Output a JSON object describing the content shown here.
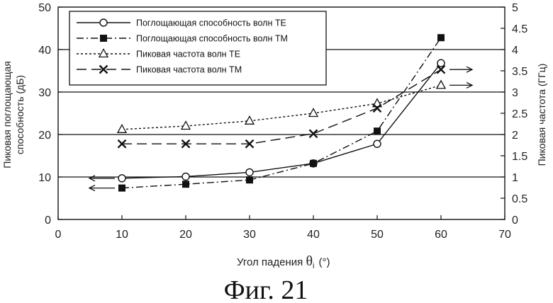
{
  "chart_data": {
    "type": "line",
    "caption": "Фиг. 21",
    "xlabel": "Угол падения θi (°)",
    "xlabel_parts": {
      "text": "Угол падения ",
      "symbol": "θ",
      "subscript": "i",
      "unit": "(°)"
    },
    "ylabel_left": [
      "Пиковая поглощающая",
      "способность (дБ)"
    ],
    "ylabel_right": "Пиковая частота (ГГц)",
    "xlim": [
      0,
      70
    ],
    "ylim_left": [
      0,
      50
    ],
    "ylim_right": [
      0,
      5
    ],
    "x_ticks": [
      "0",
      "10",
      "20",
      "30",
      "40",
      "50",
      "60",
      "70"
    ],
    "y_left_ticks": [
      "0",
      "10",
      "20",
      "30",
      "40",
      "50"
    ],
    "y_right_ticks": [
      "0",
      "0.5",
      "1",
      "1.5",
      "2",
      "2.5",
      "3",
      "3.5",
      "4",
      "4.5",
      "5"
    ],
    "grid": "horizontal",
    "legend_position": "top-left",
    "series": [
      {
        "name": "Поглощающая способность волн ТЕ",
        "axis": "left",
        "marker": "circle-open",
        "line": "solid",
        "x": [
          10,
          20,
          30,
          40,
          50,
          60
        ],
        "y": [
          9.7,
          10.1,
          11.1,
          13.2,
          17.8,
          36.8
        ]
      },
      {
        "name": "Поглощающая способность волн ТМ",
        "axis": "left",
        "marker": "square-filled",
        "line": "dashdot",
        "x": [
          10,
          20,
          30,
          40,
          50,
          60
        ],
        "y": [
          7.4,
          8.3,
          9.3,
          13.2,
          20.8,
          42.8
        ]
      },
      {
        "name": "Пиковая частота волн ТЕ",
        "axis": "right",
        "marker": "triangle-open",
        "line": "dotted",
        "x": [
          10,
          20,
          30,
          40,
          50,
          60
        ],
        "y": [
          2.12,
          2.2,
          2.32,
          2.5,
          2.73,
          3.16
        ]
      },
      {
        "name": "Пиковая частота волн ТМ",
        "axis": "right",
        "marker": "cross",
        "line": "longdash",
        "x": [
          10,
          20,
          30,
          40,
          50,
          60
        ],
        "y": [
          1.78,
          1.78,
          1.78,
          2.02,
          2.62,
          3.53
        ]
      }
    ],
    "axis_indicators": [
      {
        "series": 0,
        "direction": "left"
      },
      {
        "series": 1,
        "direction": "left"
      },
      {
        "series": 2,
        "direction": "right"
      },
      {
        "series": 3,
        "direction": "right"
      }
    ],
    "colors": {
      "ink": "#111111",
      "grid": "#111111",
      "background": "#ffffff"
    }
  }
}
